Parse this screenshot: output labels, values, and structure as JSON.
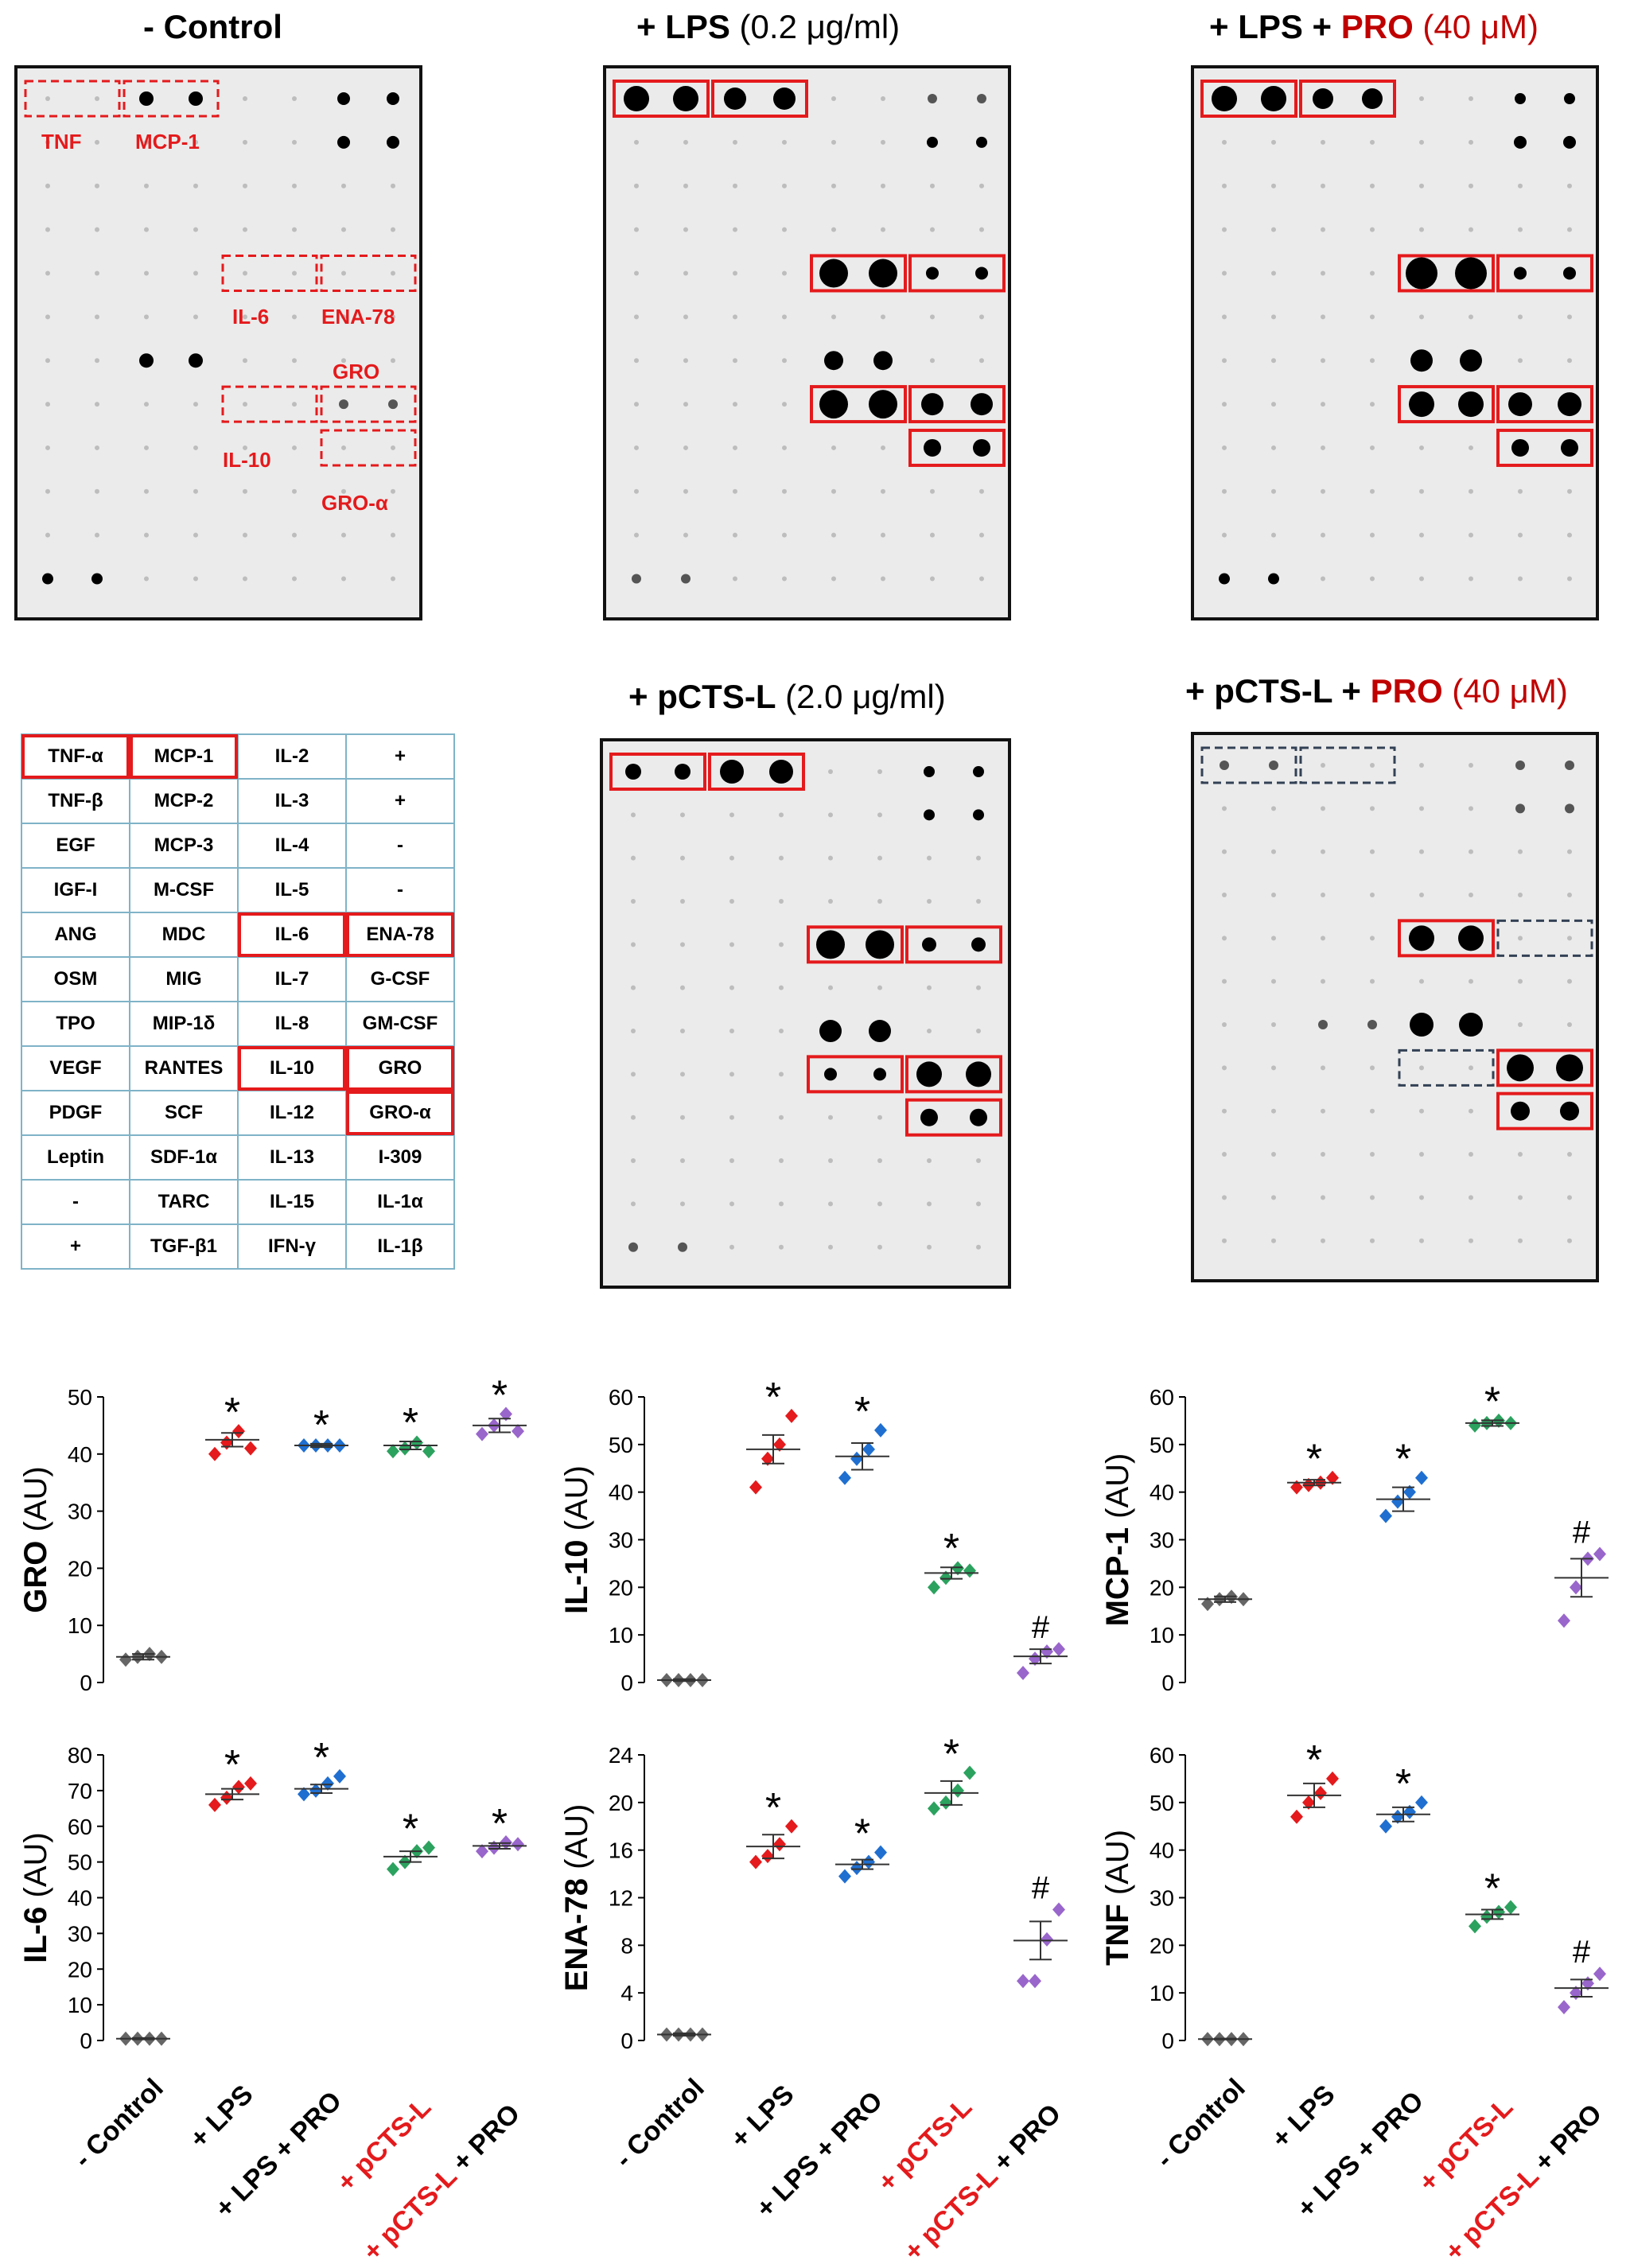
{
  "panel_titles": {
    "control": {
      "bold": "- Control",
      "rest": ""
    },
    "lps": {
      "bold": "+ LPS",
      "rest": " (0.2 μg/ml)"
    },
    "lps_pro": {
      "bold": "+ LPS + ",
      "pro": "PRO",
      "rest": " (40 μM)"
    },
    "pcts": {
      "bold": "+ pCTS-L",
      "rest": " (2.0 μg/ml)"
    },
    "pcts_pro": {
      "bold": "+ pCTS-L + ",
      "pro": "PRO",
      "rest": " (40 μM)"
    }
  },
  "blot_labels": {
    "tnf": "TNF",
    "mcp1": "MCP-1",
    "il6": "IL-6",
    "ena78": "ENA-78",
    "gro": "GRO",
    "il10": "IL-10",
    "groa": "GRO-α"
  },
  "array_layout": [
    [
      "TNF-α",
      "MCP-1",
      "IL-2",
      "+"
    ],
    [
      "TNF-β",
      "MCP-2",
      "IL-3",
      "+"
    ],
    [
      "EGF",
      "MCP-3",
      "IL-4",
      "-"
    ],
    [
      "IGF-I",
      "M-CSF",
      "IL-5",
      "-"
    ],
    [
      "ANG",
      "MDC",
      "IL-6",
      "ENA-78"
    ],
    [
      "OSM",
      "MIG",
      "IL-7",
      "G-CSF"
    ],
    [
      "TPO",
      "MIP-1δ",
      "IL-8",
      "GM-CSF"
    ],
    [
      "VEGF",
      "RANTES",
      "IL-10",
      "GRO"
    ],
    [
      "PDGF",
      "SCF",
      "IL-12",
      "GRO-α"
    ],
    [
      "Leptin",
      "SDF-1α",
      "IL-13",
      "I-309"
    ],
    [
      "-",
      "TARC",
      "IL-15",
      "IL-1α"
    ],
    [
      "+",
      "TGF-β1",
      "IFN-γ",
      "IL-1β"
    ]
  ],
  "group_colors": [
    "#666666",
    "#e41a1c",
    "#1f6fd1",
    "#2ca25f",
    "#9966cc"
  ],
  "groups": [
    "- Control",
    "+ LPS",
    "+ LPS + PRO",
    "+ pCTS-L",
    "+ pCTS-L + PRO"
  ],
  "chart_data": [
    {
      "type": "scatter",
      "ylabel": "GRO",
      "unit": " (AU)",
      "ylim": [
        0,
        50
      ],
      "ticks": [
        0,
        10,
        20,
        30,
        40,
        50
      ],
      "means": [
        4.5,
        42.5,
        41.5,
        41.5,
        45
      ],
      "sem": [
        0.5,
        1.2,
        0.3,
        0.7,
        1.2
      ],
      "points": [
        [
          4,
          4.5,
          5,
          4.5
        ],
        [
          40,
          42,
          44,
          41
        ],
        [
          41.5,
          41.5,
          41.5,
          41.5
        ],
        [
          40.5,
          41,
          42,
          40.5
        ],
        [
          43.5,
          45,
          47,
          44
        ]
      ],
      "marks": [
        "",
        "*",
        "*",
        "*",
        "*"
      ]
    },
    {
      "type": "scatter",
      "ylabel": "IL-10",
      "unit": " (AU)",
      "ylim": [
        0,
        60
      ],
      "ticks": [
        0,
        10,
        20,
        30,
        40,
        50,
        60
      ],
      "means": [
        0.5,
        49,
        47.5,
        23,
        5.5
      ],
      "sem": [
        0.2,
        3,
        2.8,
        1.2,
        1.5
      ],
      "points": [
        [
          0.5,
          0.5,
          0.5,
          0.5
        ],
        [
          41,
          47,
          50,
          56
        ],
        [
          43,
          47,
          49,
          53
        ],
        [
          20,
          22,
          24,
          23.5
        ],
        [
          2,
          5,
          6.5,
          7
        ]
      ],
      "marks": [
        "",
        "*",
        "*",
        "*",
        "#"
      ]
    },
    {
      "type": "scatter",
      "ylabel": "MCP-1",
      "unit": " (AU)",
      "ylim": [
        0,
        60
      ],
      "ticks": [
        0,
        10,
        20,
        30,
        40,
        50,
        60
      ],
      "means": [
        17.5,
        42,
        38.5,
        54.5,
        22
      ],
      "sem": [
        0.6,
        0.6,
        2.5,
        0.6,
        4
      ],
      "points": [
        [
          16.5,
          17.5,
          18,
          17.5
        ],
        [
          41,
          41.5,
          42,
          43
        ],
        [
          35,
          38,
          40,
          43
        ],
        [
          54,
          54.5,
          55,
          54.5
        ],
        [
          13,
          20,
          26,
          27
        ]
      ],
      "marks": [
        "",
        "*",
        "*",
        "*",
        "#"
      ]
    },
    {
      "type": "scatter",
      "ylabel": "IL-6",
      "unit": " (AU)",
      "ylim": [
        0,
        80
      ],
      "ticks": [
        0,
        10,
        20,
        30,
        40,
        50,
        60,
        70,
        80
      ],
      "means": [
        0.5,
        69,
        70.5,
        51.5,
        54.5
      ],
      "sem": [
        0.2,
        1.5,
        1.2,
        1.5,
        0.8
      ],
      "points": [
        [
          0.5,
          0.5,
          0.5,
          0.5
        ],
        [
          66,
          68,
          71,
          72
        ],
        [
          69,
          70,
          72,
          74
        ],
        [
          48,
          50,
          53,
          54
        ],
        [
          53,
          54,
          55.5,
          55
        ]
      ],
      "marks": [
        "",
        "*",
        "*",
        "*",
        "*"
      ]
    },
    {
      "type": "scatter",
      "ylabel": "ENA-78",
      "unit": " (AU)",
      "ylim": [
        0,
        24
      ],
      "ticks": [
        0,
        4,
        8,
        12,
        16,
        20,
        24
      ],
      "means": [
        0.5,
        16.3,
        14.8,
        20.8,
        8.4
      ],
      "sem": [
        0.1,
        1,
        0.4,
        1,
        1.6
      ],
      "points": [
        [
          0.5,
          0.5,
          0.5,
          0.5
        ],
        [
          15,
          15.5,
          16.5,
          18
        ],
        [
          13.8,
          14.5,
          15,
          15.8
        ],
        [
          19.5,
          20,
          21,
          22.5
        ],
        [
          5,
          5,
          8.5,
          11
        ]
      ],
      "marks": [
        "",
        "*",
        "*",
        "*",
        "#"
      ]
    },
    {
      "type": "scatter",
      "ylabel": "TNF",
      "unit": " (AU)",
      "ylim": [
        0,
        60
      ],
      "ticks": [
        0,
        10,
        20,
        30,
        40,
        50,
        60
      ],
      "means": [
        0.3,
        51.5,
        47.5,
        26.5,
        11
      ],
      "sem": [
        0.1,
        2.5,
        1.5,
        1,
        1.8
      ],
      "points": [
        [
          0.3,
          0.3,
          0.3,
          0.3
        ],
        [
          47,
          50,
          52,
          55
        ],
        [
          45,
          47,
          48,
          50
        ],
        [
          24,
          26,
          27,
          28
        ],
        [
          7,
          10,
          12,
          14
        ]
      ],
      "marks": [
        "",
        "*",
        "*",
        "*",
        "#"
      ]
    }
  ],
  "xlabels": [
    {
      "parts": [
        {
          "t": "- Control",
          "c": "#000"
        }
      ]
    },
    {
      "parts": [
        {
          "t": "+ LPS",
          "c": "#000"
        }
      ]
    },
    {
      "parts": [
        {
          "t": "+ LPS + PRO",
          "c": "#000"
        }
      ]
    },
    {
      "parts": [
        {
          "t": "+ pCTS-L",
          "c": "#e41a1c"
        }
      ]
    },
    {
      "parts": [
        {
          "t": "+ pCTS-L",
          "c": "#e41a1c"
        },
        {
          "t": " + PRO",
          "c": "#000"
        }
      ]
    }
  ]
}
